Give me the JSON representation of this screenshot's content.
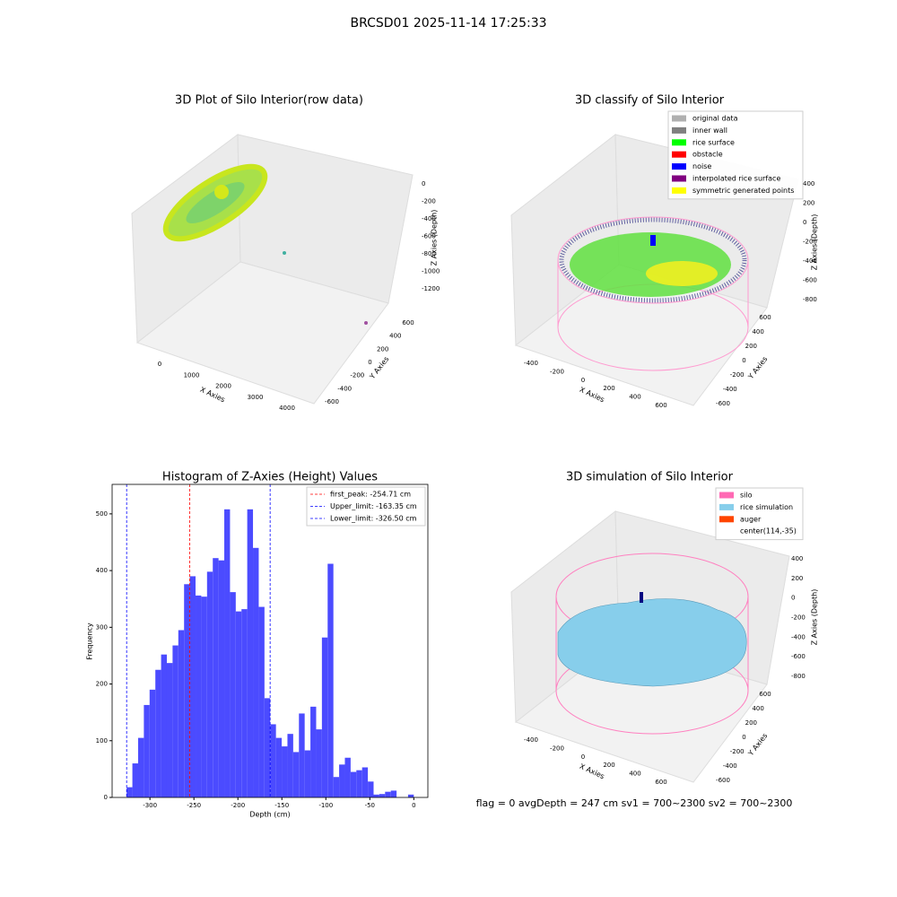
{
  "title": "BRCSD01 2025-11-14 17:25:33",
  "footer": "flag = 0     avgDepth = 247 cm  sv1 = 700~2300  sv2 = 700~2300",
  "chart_data": [
    {
      "type": "scatter3d",
      "title": "3D Plot of Silo Interior(row data)",
      "xlabel": "X Axies",
      "ylabel": "Y Axies",
      "zlabel": "Z Axies (Depth)",
      "xticks": [
        0,
        1000,
        2000,
        3000,
        4000
      ],
      "yticks": [
        600,
        400,
        200,
        0,
        -200,
        -400,
        -600
      ],
      "zticks": [
        0,
        -200,
        -400,
        -600,
        -800,
        -1000,
        -1200
      ]
    },
    {
      "type": "scatter3d",
      "title": "3D classify of Silo Interior",
      "xlabel": "X Axies",
      "ylabel": "Y Axies",
      "zlabel": "Z Axies (Depth)",
      "xticks": [
        -400,
        -200,
        0,
        200,
        400,
        600
      ],
      "yticks": [
        600,
        400,
        200,
        0,
        -200,
        -400,
        -600
      ],
      "zticks": [
        400,
        200,
        0,
        -200,
        -400,
        -600,
        -800
      ],
      "legend": [
        {
          "name": "original data",
          "color": "#b0b0b0"
        },
        {
          "name": "inner wall",
          "color": "#808080"
        },
        {
          "name": "rice surface",
          "color": "#00ff00"
        },
        {
          "name": "obstacle",
          "color": "#ff0000"
        },
        {
          "name": "noise",
          "color": "#0000ff"
        },
        {
          "name": "interpolated rice surface",
          "color": "#800080"
        },
        {
          "name": "symmetric generated points",
          "color": "#ffff00"
        }
      ]
    },
    {
      "type": "histogram",
      "title": "Histogram of Z-Axies (Height) Values",
      "xlabel": "Depth (cm)",
      "ylabel": "Frequency",
      "color": "#4b4bff",
      "bins": [
        -326.5,
        -319.97,
        -313.44,
        -306.91,
        -300.38,
        -293.85,
        -287.32,
        -280.79,
        -274.26,
        -267.73,
        -261.2,
        -254.67,
        -248.14,
        -241.61,
        -235.08,
        -228.55,
        -222.02,
        -215.49,
        -208.96,
        -202.43,
        -195.9,
        -189.37,
        -182.84,
        -176.31,
        -169.78,
        -163.25,
        -156.72,
        -150.19,
        -143.66,
        -137.13,
        -130.6,
        -124.07,
        -117.54,
        -111.01,
        -104.48,
        -97.95,
        -91.42,
        -84.89,
        -78.36,
        -71.83,
        -65.3,
        -58.77,
        -52.24,
        -45.71,
        -39.18,
        -32.65,
        -26.12,
        -19.59,
        -13.06,
        -6.53,
        0.0
      ],
      "counts": [
        18,
        60,
        105,
        163,
        190,
        225,
        252,
        237,
        268,
        295,
        376,
        390,
        356,
        354,
        398,
        422,
        418,
        508,
        362,
        328,
        332,
        508,
        440,
        336,
        175,
        129,
        105,
        90,
        112,
        80,
        148,
        83,
        160,
        120,
        282,
        412,
        36,
        58,
        70,
        45,
        48,
        53,
        28,
        5,
        6,
        10,
        12,
        0,
        0,
        5
      ],
      "xlim": [
        -343,
        16
      ],
      "ylim": [
        0,
        552
      ],
      "xticks": [
        -300,
        -250,
        -200,
        -150,
        -100,
        -50,
        0
      ],
      "yticks": [
        0,
        100,
        200,
        300,
        400,
        500
      ],
      "vlines": [
        {
          "value": -254.71,
          "label": "first_peak: -254.71 cm",
          "color": "#ff0000"
        },
        {
          "value": -163.35,
          "label": "Upper_limit: -163.35 cm",
          "color": "#0000ff"
        },
        {
          "value": -326.5,
          "label": "Lower_limit: -326.50 cm",
          "color": "#0000ff"
        }
      ]
    },
    {
      "type": "surface3d",
      "title": "3D simulation of Silo Interior",
      "xlabel": "X Axies",
      "ylabel": "Y Axies",
      "zlabel": "Z Axies (Depth)",
      "xticks": [
        -400,
        -200,
        0,
        200,
        400,
        600
      ],
      "yticks": [
        600,
        400,
        200,
        0,
        -200,
        -400,
        -600
      ],
      "zticks": [
        400,
        200,
        0,
        -200,
        -400,
        -600,
        -800
      ],
      "legend": [
        {
          "name": "silo",
          "color": "#ff69b4"
        },
        {
          "name": "rice simulation",
          "color": "#87ceeb"
        },
        {
          "name": "auger",
          "color": "#ff4500"
        },
        {
          "name": "center(114,-35)"
        }
      ]
    }
  ]
}
